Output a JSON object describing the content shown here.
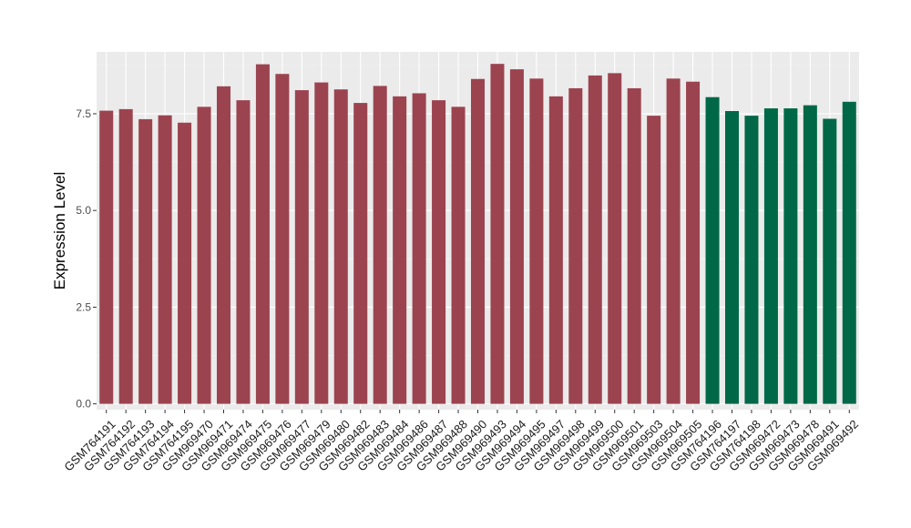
{
  "chart_data": {
    "type": "bar",
    "ylabel": "Expression Level",
    "xlabel": "",
    "ylim": [
      -0.15,
      9.1
    ],
    "yticks": [
      0.0,
      2.5,
      5.0,
      7.5
    ],
    "ytick_labels": [
      "0.0",
      "2.5",
      "5.0",
      "7.5"
    ],
    "grid": true,
    "background": "#ebebeb",
    "categories": [
      "GSM764191",
      "GSM764192",
      "GSM764193",
      "GSM764194",
      "GSM764195",
      "GSM969470",
      "GSM969471",
      "GSM969474",
      "GSM969475",
      "GSM969476",
      "GSM969477",
      "GSM969479",
      "GSM969480",
      "GSM969482",
      "GSM969483",
      "GSM969484",
      "GSM969486",
      "GSM969487",
      "GSM969488",
      "GSM969490",
      "GSM969493",
      "GSM969494",
      "GSM969495",
      "GSM969497",
      "GSM969498",
      "GSM969499",
      "GSM969500",
      "GSM969501",
      "GSM969503",
      "GSM969504",
      "GSM969505",
      "GSM764196",
      "GSM764197",
      "GSM764198",
      "GSM969472",
      "GSM969473",
      "GSM969478",
      "GSM969491",
      "GSM969492"
    ],
    "values": [
      7.58,
      7.62,
      7.36,
      7.46,
      7.27,
      7.68,
      8.21,
      7.85,
      8.78,
      8.53,
      8.11,
      8.31,
      8.13,
      7.78,
      8.22,
      7.95,
      8.03,
      7.85,
      7.68,
      8.4,
      8.79,
      8.65,
      8.41,
      7.95,
      8.16,
      8.49,
      8.55,
      8.16,
      7.45,
      8.41,
      8.33,
      7.93,
      7.57,
      7.45,
      7.64,
      7.64,
      7.72,
      7.37,
      7.81
    ],
    "groups": [
      "a",
      "a",
      "a",
      "a",
      "a",
      "a",
      "a",
      "a",
      "a",
      "a",
      "a",
      "a",
      "a",
      "a",
      "a",
      "a",
      "a",
      "a",
      "a",
      "a",
      "a",
      "a",
      "a",
      "a",
      "a",
      "a",
      "a",
      "a",
      "a",
      "a",
      "a",
      "b",
      "b",
      "b",
      "b",
      "b",
      "b",
      "b",
      "b"
    ],
    "colors": {
      "a": "#9b4450",
      "b": "#006847"
    },
    "grid_major_color": "#ffffff",
    "grid_minor_color": "#f5f5f5"
  }
}
